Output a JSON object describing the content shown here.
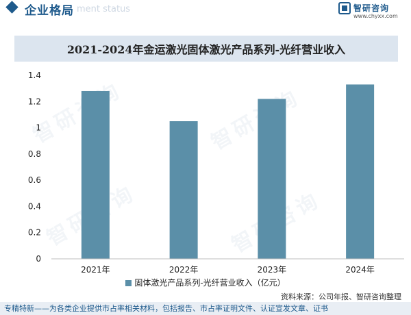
{
  "header": {
    "section_title": "企业格局",
    "section_subtitle": "ment status",
    "brand_name": "智研咨询",
    "brand_url": "www.chyxx.com"
  },
  "chart_data": {
    "type": "bar",
    "title": "2021-2024年金运激光固体激光产品系列-光纤营业收入",
    "categories": [
      "2021年",
      "2022年",
      "2023年",
      "2024年"
    ],
    "series": [
      {
        "name": "固体激光产品系列-光纤营业收入（亿元）",
        "values": [
          1.28,
          1.05,
          1.22,
          1.33
        ]
      }
    ],
    "ylim": [
      0,
      1.4
    ],
    "yticks": [
      "0",
      "0.2",
      "0.4",
      "0.6",
      "0.8",
      "1",
      "1.2",
      "1.4"
    ],
    "xlabel": "",
    "ylabel": "",
    "bar_color": "#5b8fa8",
    "grid": false,
    "legend_position": "bottom"
  },
  "source": "资料来源：公司年报、智研咨询整理",
  "footer": "专精特新——为各类企业提供市占率相关材料，包括报告、市占率证明文件、认证宣发文章、证书",
  "colors": {
    "accent": "#1e5a8c",
    "bar": "#5b8fa8",
    "title_bg": "#dce5ef"
  }
}
